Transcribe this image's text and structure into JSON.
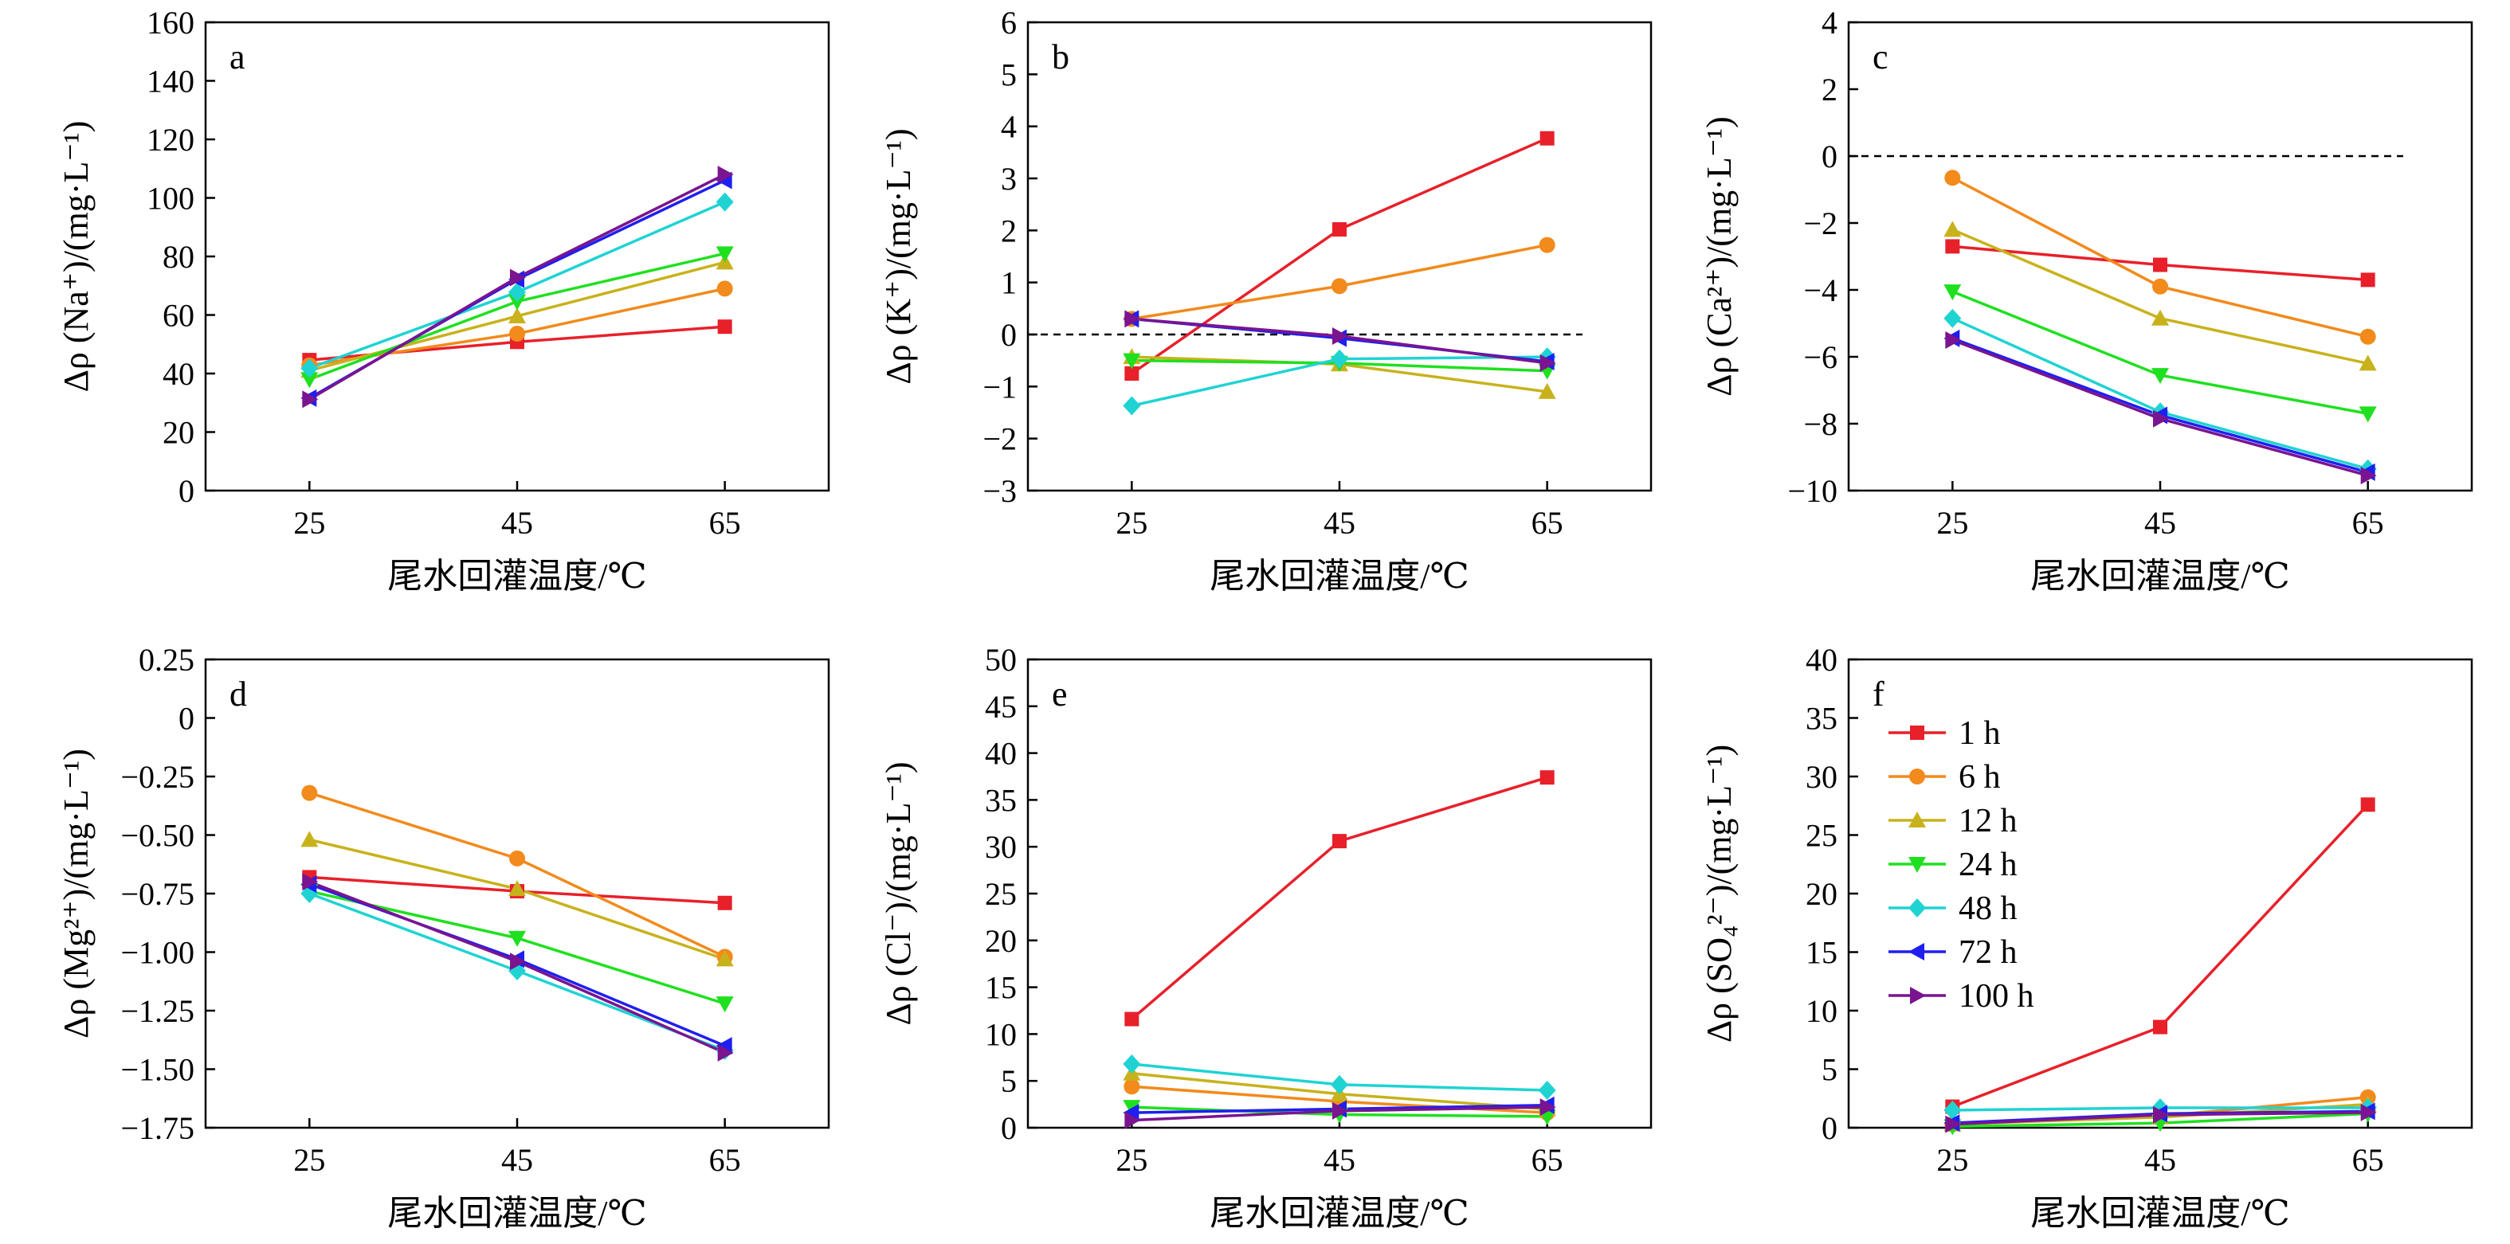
{
  "colors": {
    "1 h": "#e8202a",
    "6 h": "#f28a1c",
    "12 h": "#c8b21c",
    "24 h": "#1fe01f",
    "48 h": "#1fd3d3",
    "72 h": "#1f1ff0",
    "100 h": "#7a1490"
  },
  "markers": {
    "1 h": "square",
    "6 h": "circle",
    "12 h": "triangle-up",
    "24 h": "triangle-down",
    "48 h": "diamond",
    "72 h": "triangle-left",
    "100 h": "triangle-right"
  },
  "chart_data": [
    {
      "type": "line",
      "letter": "a",
      "ylabel": "Δρ (Na⁺)/(mg·L⁻¹)",
      "xlabel": "尾水回灌温度/℃",
      "x": [
        25,
        45,
        65
      ],
      "xlim": [
        15,
        75
      ],
      "ylim": [
        0,
        160
      ],
      "yticks": [
        0,
        20,
        40,
        60,
        80,
        100,
        120,
        140,
        160
      ],
      "zero_line": false,
      "series": [
        {
          "name": "1 h",
          "values": [
            44.6,
            50.8,
            56.0
          ]
        },
        {
          "name": "6 h",
          "values": [
            42.8,
            53.6,
            69.0
          ]
        },
        {
          "name": "12 h",
          "values": [
            41.0,
            59.6,
            78.0
          ]
        },
        {
          "name": "24 h",
          "values": [
            38.0,
            64.6,
            81.0
          ]
        },
        {
          "name": "48 h",
          "values": [
            41.8,
            67.8,
            98.6
          ]
        },
        {
          "name": "72 h",
          "values": [
            31.6,
            72.2,
            106.0
          ]
        },
        {
          "name": "100 h",
          "values": [
            31.2,
            72.8,
            108.0
          ]
        }
      ]
    },
    {
      "type": "line",
      "letter": "b",
      "ylabel": "Δρ (K⁺)/(mg·L⁻¹)",
      "xlabel": "尾水回灌温度/℃",
      "x": [
        25,
        45,
        65
      ],
      "xlim": [
        15,
        75
      ],
      "ylim": [
        -3,
        6
      ],
      "yticks": [
        -3,
        -2,
        -1,
        0,
        1,
        2,
        3,
        4,
        5,
        6
      ],
      "zero_line": true,
      "series": [
        {
          "name": "1 h",
          "values": [
            -0.75,
            2.02,
            3.77
          ]
        },
        {
          "name": "6 h",
          "values": [
            0.3,
            0.93,
            1.72
          ]
        },
        {
          "name": "12 h",
          "values": [
            -0.43,
            -0.57,
            -1.1
          ]
        },
        {
          "name": "24 h",
          "values": [
            -0.5,
            -0.55,
            -0.7
          ]
        },
        {
          "name": "48 h",
          "values": [
            -1.37,
            -0.47,
            -0.43
          ]
        },
        {
          "name": "72 h",
          "values": [
            0.3,
            -0.07,
            -0.52
          ]
        },
        {
          "name": "100 h",
          "values": [
            0.3,
            -0.03,
            -0.55
          ]
        }
      ]
    },
    {
      "type": "line",
      "letter": "c",
      "ylabel": "Δρ (Ca²⁺)/(mg·L⁻¹)",
      "xlabel": "尾水回灌温度/℃",
      "x": [
        25,
        45,
        65
      ],
      "xlim": [
        15,
        75
      ],
      "ylim": [
        -10,
        4
      ],
      "yticks": [
        -10,
        -8,
        -6,
        -4,
        -2,
        0,
        2,
        4
      ],
      "zero_line": true,
      "series": [
        {
          "name": "1 h",
          "values": [
            -2.7,
            -3.25,
            -3.7
          ]
        },
        {
          "name": "6 h",
          "values": [
            -0.65,
            -3.9,
            -5.4
          ]
        },
        {
          "name": "12 h",
          "values": [
            -2.2,
            -4.85,
            -6.2
          ]
        },
        {
          "name": "24 h",
          "values": [
            -4.05,
            -6.55,
            -7.7
          ]
        },
        {
          "name": "48 h",
          "values": [
            -4.85,
            -7.65,
            -9.35
          ]
        },
        {
          "name": "72 h",
          "values": [
            -5.45,
            -7.75,
            -9.45
          ]
        },
        {
          "name": "100 h",
          "values": [
            -5.5,
            -7.85,
            -9.55
          ]
        }
      ]
    },
    {
      "type": "line",
      "letter": "d",
      "ylabel": "Δρ (Mg²⁺)/(mg·L⁻¹)",
      "xlabel": "尾水回灌温度/℃",
      "x": [
        25,
        45,
        65
      ],
      "xlim": [
        15,
        75
      ],
      "ylim": [
        -1.75,
        0.25
      ],
      "yticks": [
        -1.75,
        -1.5,
        -1.25,
        -1.0,
        -0.75,
        -0.5,
        -0.25,
        0,
        0.25
      ],
      "ytick_labels": [
        "−1.75",
        "−1.50",
        "−1.25",
        "−1.00",
        "−0.75",
        "−0.50",
        "−0.25",
        "0",
        "0.25"
      ],
      "zero_line": false,
      "series": [
        {
          "name": "1 h",
          "values": [
            -0.68,
            -0.74,
            -0.79
          ]
        },
        {
          "name": "6 h",
          "values": [
            -0.32,
            -0.6,
            -1.02
          ]
        },
        {
          "name": "12 h",
          "values": [
            -0.52,
            -0.73,
            -1.03
          ]
        },
        {
          "name": "24 h",
          "values": [
            -0.74,
            -0.94,
            -1.22
          ]
        },
        {
          "name": "48 h",
          "values": [
            -0.75,
            -1.08,
            -1.42
          ]
        },
        {
          "name": "72 h",
          "values": [
            -0.71,
            -1.03,
            -1.4
          ]
        },
        {
          "name": "100 h",
          "values": [
            -0.7,
            -1.04,
            -1.43
          ]
        }
      ]
    },
    {
      "type": "line",
      "letter": "e",
      "ylabel": "Δρ (Cl⁻)/(mg·L⁻¹)",
      "xlabel": "尾水回灌温度/℃",
      "x": [
        25,
        45,
        65
      ],
      "xlim": [
        15,
        75
      ],
      "ylim": [
        0,
        50
      ],
      "yticks": [
        0,
        5,
        10,
        15,
        20,
        25,
        30,
        35,
        40,
        45,
        50
      ],
      "zero_line": false,
      "series": [
        {
          "name": "1 h",
          "values": [
            11.6,
            30.6,
            37.4
          ]
        },
        {
          "name": "6 h",
          "values": [
            4.4,
            2.8,
            1.6
          ]
        },
        {
          "name": "12 h",
          "values": [
            5.8,
            3.6,
            2.0
          ]
        },
        {
          "name": "24 h",
          "values": [
            2.2,
            1.4,
            1.2
          ]
        },
        {
          "name": "48 h",
          "values": [
            6.8,
            4.6,
            4.0
          ]
        },
        {
          "name": "72 h",
          "values": [
            1.6,
            2.0,
            2.4
          ]
        },
        {
          "name": "100 h",
          "values": [
            0.8,
            1.8,
            2.2
          ]
        }
      ]
    },
    {
      "type": "line",
      "letter": "f",
      "ylabel": "Δρ (SO₄²⁻)/(mg·L⁻¹)",
      "xlabel": "尾水回灌温度/℃",
      "x": [
        25,
        45,
        65
      ],
      "xlim": [
        15,
        75
      ],
      "ylim": [
        0,
        40
      ],
      "yticks": [
        0,
        5,
        10,
        15,
        20,
        25,
        30,
        35,
        40
      ],
      "zero_line": false,
      "series": [
        {
          "name": "1 h",
          "values": [
            1.8,
            8.6,
            27.6
          ]
        },
        {
          "name": "6 h",
          "values": [
            0.3,
            1.0,
            2.6
          ]
        },
        {
          "name": "12 h",
          "values": [
            0.3,
            0.9,
            2.0
          ]
        },
        {
          "name": "24 h",
          "values": [
            0.1,
            0.4,
            1.2
          ]
        },
        {
          "name": "48 h",
          "values": [
            1.5,
            1.7,
            1.7
          ]
        },
        {
          "name": "72 h",
          "values": [
            0.4,
            1.2,
            1.4
          ]
        },
        {
          "name": "100 h",
          "values": [
            0.3,
            1.1,
            1.3
          ]
        }
      ]
    }
  ],
  "legend": {
    "panel": "f",
    "items": [
      "1 h",
      "6 h",
      "12 h",
      "24 h",
      "48 h",
      "72 h",
      "100 h"
    ]
  }
}
